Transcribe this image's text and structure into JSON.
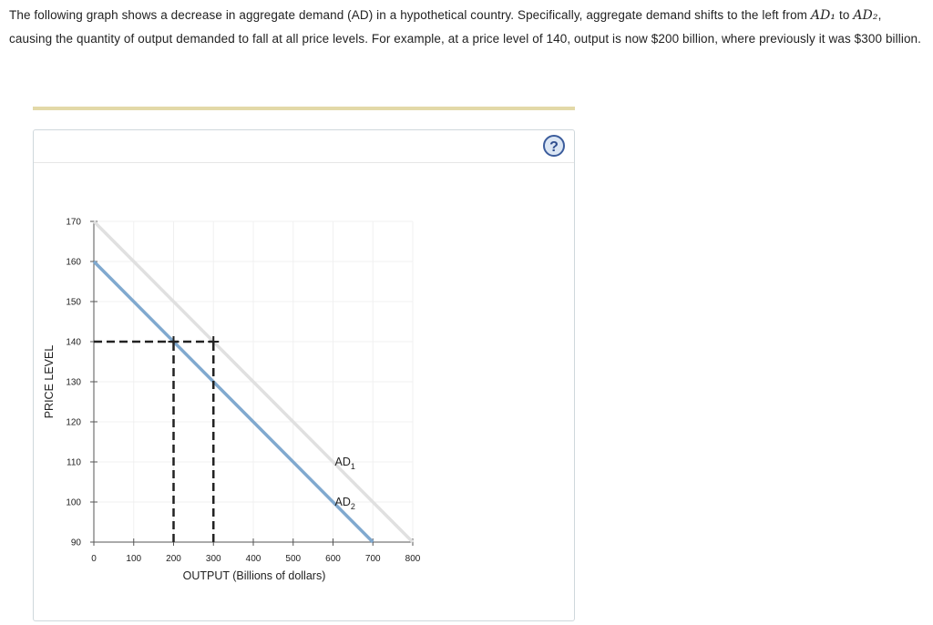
{
  "prompt": {
    "part1": "The following graph shows a decrease in aggregate demand (AD) in a hypothetical country. Specifically, aggregate demand shifts to the left from ",
    "ad1": "AD₁",
    "to": " to ",
    "ad2": "AD₂",
    "part2": ", causing the quantity of output demanded to fall at all price levels. For example, at a price level of 140, output is now $200 billion, where previously it was $300 billion."
  },
  "help": {
    "label": "?",
    "icon": "help-question-icon"
  },
  "chart_data": {
    "type": "line",
    "xlabel": "OUTPUT (Billions of dollars)",
    "ylabel": "PRICE LEVEL",
    "xlim": [
      0,
      800
    ],
    "ylim": [
      90,
      170
    ],
    "xticks": [
      "0",
      "100",
      "200",
      "300",
      "400",
      "500",
      "600",
      "700",
      "800"
    ],
    "yticks": [
      "90",
      "100",
      "110",
      "120",
      "130",
      "140",
      "150",
      "160",
      "170"
    ],
    "grid": true,
    "series": [
      {
        "name": "AD1",
        "label": "AD",
        "sub": "1",
        "color": "#e0e0e0",
        "points": [
          [
            0,
            170
          ],
          [
            800,
            90
          ]
        ],
        "label_at": [
          600,
          110
        ]
      },
      {
        "name": "AD2",
        "label": "AD",
        "sub": "2",
        "color": "#80a9cf",
        "points": [
          [
            0,
            160
          ],
          [
            700,
            90
          ]
        ],
        "label_at": [
          600,
          100
        ]
      }
    ],
    "reference_lines": [
      {
        "from": [
          0,
          140
        ],
        "to": [
          300,
          140
        ]
      },
      {
        "from": [
          200,
          90
        ],
        "to": [
          200,
          140
        ]
      },
      {
        "from": [
          300,
          90
        ],
        "to": [
          300,
          140
        ]
      }
    ],
    "markers": [
      [
        200,
        140
      ],
      [
        300,
        140
      ]
    ]
  }
}
